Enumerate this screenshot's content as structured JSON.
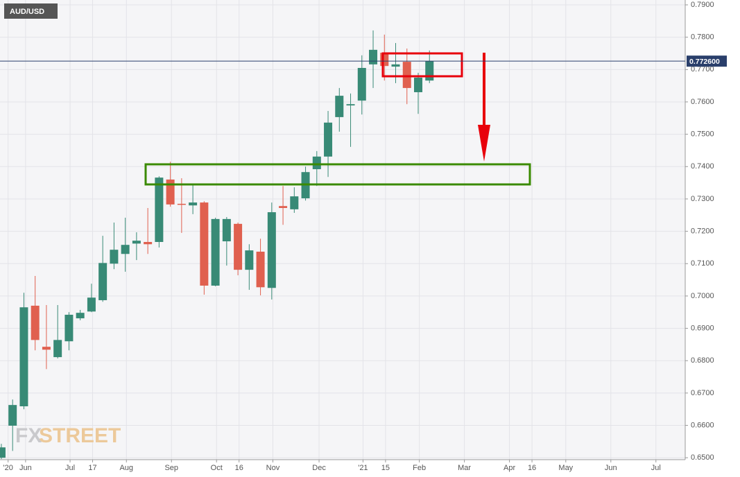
{
  "chart_data": {
    "type": "candlestick",
    "title": "AUD/USD",
    "watermark": [
      "FX",
      "STREET"
    ],
    "up_color": "#388a76",
    "down_color": "#e0604f",
    "grid": true,
    "x": [
      0,
      1,
      2,
      3,
      4,
      5,
      6,
      7,
      8,
      9,
      10,
      11,
      12,
      13,
      14,
      15,
      16,
      17,
      18,
      19,
      20,
      21,
      22,
      23,
      24,
      25,
      26,
      27,
      28,
      29,
      30,
      31,
      32,
      33,
      34,
      35,
      36,
      37,
      38
    ],
    "open": [
      0.65,
      0.6599,
      0.6659,
      0.697,
      0.6843,
      0.6811,
      0.686,
      0.6931,
      0.6952,
      0.6987,
      0.71,
      0.713,
      0.7162,
      0.7167,
      0.7167,
      0.736,
      0.7285,
      0.728,
      0.7289,
      0.7032,
      0.7169,
      0.7223,
      0.7081,
      0.7137,
      0.7025,
      0.7278,
      0.7268,
      0.7302,
      0.7392,
      0.7431,
      0.7553,
      0.7589,
      0.7604,
      0.7716,
      0.7752,
      0.7709,
      0.7724,
      0.763,
      0.7666
    ],
    "high": [
      0.6543,
      0.668,
      0.701,
      0.7062,
      0.6972,
      0.6972,
      0.695,
      0.6957,
      0.7038,
      0.7186,
      0.7227,
      0.7242,
      0.7197,
      0.7272,
      0.737,
      0.7415,
      0.7364,
      0.7347,
      0.7293,
      0.7242,
      0.7244,
      0.7227,
      0.716,
      0.7177,
      0.7289,
      0.734,
      0.7336,
      0.74,
      0.7448,
      0.7572,
      0.7643,
      0.7626,
      0.7744,
      0.7821,
      0.7808,
      0.7782,
      0.7765,
      0.769,
      0.7759
    ],
    "low": [
      0.6496,
      0.6521,
      0.665,
      0.6832,
      0.6774,
      0.6807,
      0.6832,
      0.6925,
      0.695,
      0.6982,
      0.7083,
      0.7075,
      0.7111,
      0.713,
      0.715,
      0.7276,
      0.7195,
      0.7253,
      0.7004,
      0.703,
      0.7094,
      0.7064,
      0.7019,
      0.7002,
      0.6989,
      0.722,
      0.7257,
      0.7295,
      0.734,
      0.7368,
      0.7508,
      0.7461,
      0.7561,
      0.7643,
      0.7666,
      0.7658,
      0.7593,
      0.7563,
      0.7658
    ],
    "close": [
      0.6532,
      0.6663,
      0.6965,
      0.6864,
      0.6834,
      0.6864,
      0.6942,
      0.6948,
      0.6995,
      0.7102,
      0.7143,
      0.7158,
      0.7171,
      0.716,
      0.7366,
      0.7283,
      0.7283,
      0.7289,
      0.7032,
      0.7238,
      0.7238,
      0.7081,
      0.7141,
      0.7027,
      0.7259,
      0.7272,
      0.7308,
      0.7383,
      0.7431,
      0.7536,
      0.7619,
      0.7593,
      0.7705,
      0.7761,
      0.7711,
      0.7716,
      0.7643,
      0.7675,
      0.7726
    ],
    "xlim": [
      -0.12,
      60.7
    ],
    "xticks": [
      {
        "value": 0.6,
        "label": "'20"
      },
      {
        "value": 2.15,
        "label": "Jun"
      },
      {
        "value": 6.1,
        "label": "Jul"
      },
      {
        "value": 8.1,
        "label": "17"
      },
      {
        "value": 11.1,
        "label": "Aug"
      },
      {
        "value": 15.1,
        "label": "Sep"
      },
      {
        "value": 19.1,
        "label": "Oct"
      },
      {
        "value": 21.1,
        "label": "16"
      },
      {
        "value": 24.1,
        "label": "Nov"
      },
      {
        "value": 28.2,
        "label": "Dec"
      },
      {
        "value": 32.1,
        "label": "'21"
      },
      {
        "value": 34.1,
        "label": "15"
      },
      {
        "value": 37.1,
        "label": "Feb"
      },
      {
        "value": 41.1,
        "label": "Mar"
      },
      {
        "value": 45.1,
        "label": "Apr"
      },
      {
        "value": 47.1,
        "label": "16"
      },
      {
        "value": 50.1,
        "label": "May"
      },
      {
        "value": 54.1,
        "label": "Jun"
      },
      {
        "value": 58.1,
        "label": "Jul"
      }
    ],
    "ylim": [
      0.6494,
      0.7915
    ],
    "yticks": [
      {
        "value": 0.65,
        "label": "0.6500"
      },
      {
        "value": 0.66,
        "label": "0.6600"
      },
      {
        "value": 0.67,
        "label": "0.6700"
      },
      {
        "value": 0.68,
        "label": "0.6800"
      },
      {
        "value": 0.69,
        "label": "0.6900"
      },
      {
        "value": 0.7,
        "label": "0.7000"
      },
      {
        "value": 0.71,
        "label": "0.7100"
      },
      {
        "value": 0.72,
        "label": "0.7200"
      },
      {
        "value": 0.73,
        "label": "0.7300"
      },
      {
        "value": 0.74,
        "label": "0.7400"
      },
      {
        "value": 0.75,
        "label": "0.7500"
      },
      {
        "value": 0.76,
        "label": "0.7600"
      },
      {
        "value": 0.77,
        "label": "0.7700"
      },
      {
        "value": 0.78,
        "label": "0.7800"
      },
      {
        "value": 0.79,
        "label": "0.7900"
      }
    ],
    "last_price": {
      "value": 0.7726,
      "label": "0.772600"
    }
  }
}
